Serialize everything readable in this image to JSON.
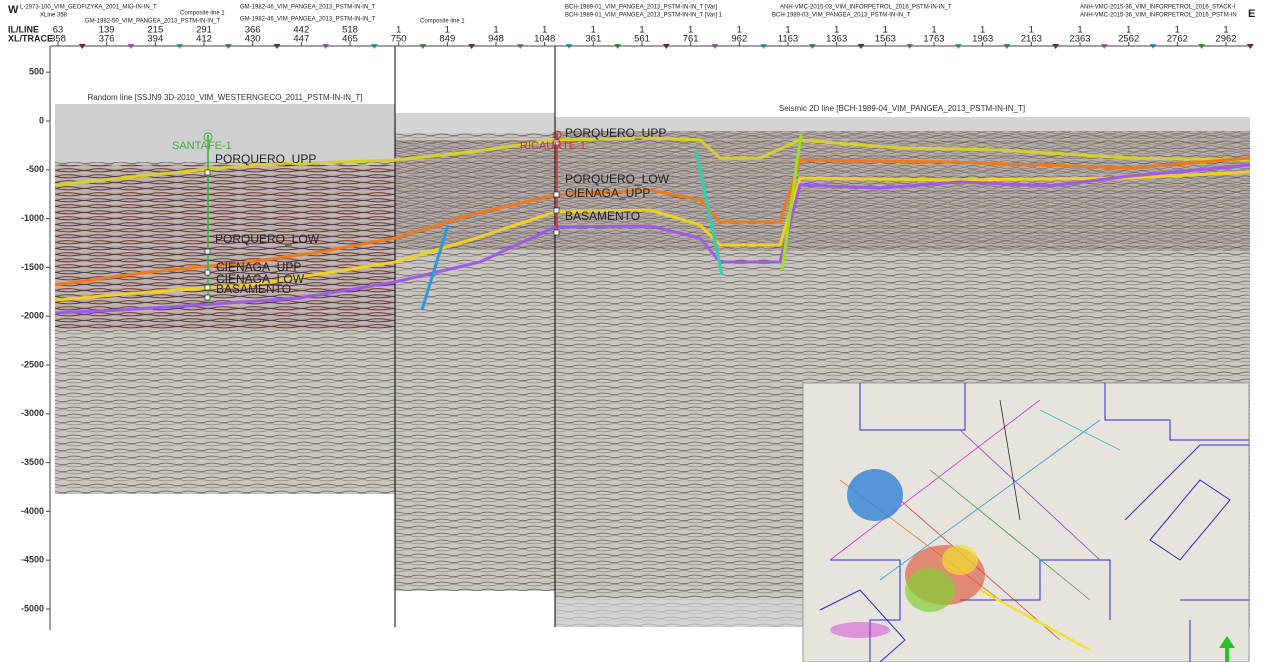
{
  "header": {
    "west": "W",
    "east": "E",
    "il_label": "IL/LINE",
    "xl_label": "XL/TRACE",
    "line_names": [
      "L-1973-100_VIM_GEOFIZYKA_2001_MIG-IN-IN_T",
      "XLine 358",
      "GM-1982-50_VIM_PANGEA_2013_PSTM-IN-IN_T",
      "Composite line 1",
      "GM-1982-46_VIM_PANGEA_2013_PSTM-IN-IN_T",
      "GM-1982-46_VIM_PANGEA_2013_PSTM-IN-IN_T",
      "Composite line 1",
      "BCH-1989-01_VIM_PANGEA_2013_PSTM-IN-IN_T [Var]",
      "BCH-1989-01_VIM_PANGEA_2013_PSTM-IN-IN_T [Var] 1",
      "ANH-VMC-2015-03_VIM_INFORPETROL_2016_PSTM-IN-IN_T",
      "BCH-1989-03_VIM_PANGEA_2013_PSTM-IN-IN_T",
      "ANH-VMC-2015-36_VIM_INFORPETROL_2016_STACK-I",
      "ANH-VMC-2015-36_VIM_INFORPETROL_2016_PSTM-IN"
    ],
    "columns": [
      {
        "il": 63,
        "xl": 358
      },
      {
        "il": 139,
        "xl": 376
      },
      {
        "il": 215,
        "xl": 394
      },
      {
        "il": 291,
        "xl": 412
      },
      {
        "il": 366,
        "xl": 430
      },
      {
        "il": 442,
        "xl": 447
      },
      {
        "il": 518,
        "xl": 465
      },
      {
        "il": 1,
        "xl": 750
      },
      {
        "il": 1,
        "xl": 849
      },
      {
        "il": 1,
        "xl": 948
      },
      {
        "il": 1,
        "xl": 1048
      },
      {
        "il": 1,
        "xl": 361
      },
      {
        "il": 1,
        "xl": 561
      },
      {
        "il": 1,
        "xl": 761
      },
      {
        "il": 1,
        "xl": 962
      },
      {
        "il": 1,
        "xl": 1163
      },
      {
        "il": 1,
        "xl": 1363
      },
      {
        "il": 1,
        "xl": 1563
      },
      {
        "il": 1,
        "xl": 1763
      },
      {
        "il": 1,
        "xl": 1963
      },
      {
        "il": 1,
        "xl": 2163
      },
      {
        "il": 1,
        "xl": 2363
      },
      {
        "il": 1,
        "xl": 2562
      },
      {
        "il": 1,
        "xl": 2762
      },
      {
        "il": 1,
        "xl": 2962
      }
    ]
  },
  "depth_axis": {
    "ticks": [
      500,
      0,
      -500,
      -1000,
      -1500,
      -2000,
      -2500,
      -3000,
      -3500,
      -4000,
      -4500,
      -5000
    ]
  },
  "panels": [
    "Random line [SSJN9 3D-2010_VIM_WESTERNGECO_2011_PSTM-IN-IN_T]",
    "Seismic 2D line [BCH-1989-04_VIM_PANGEA_2013_PSTM-IN-IN_T]"
  ],
  "wells": [
    "SANTAFE-1",
    "RICAURTE-1"
  ],
  "horizons_left": [
    "PORQUERO_UPP",
    "PORQUERO_LOW",
    "CIENAGA_UPP",
    "CIENAGA_LOW",
    "BASAMENTO"
  ],
  "horizons_center": [
    "PORQUERO_UPP",
    "PORQUERO_LOW",
    "CIENAGA_UPP",
    "BASAMENTO"
  ]
}
